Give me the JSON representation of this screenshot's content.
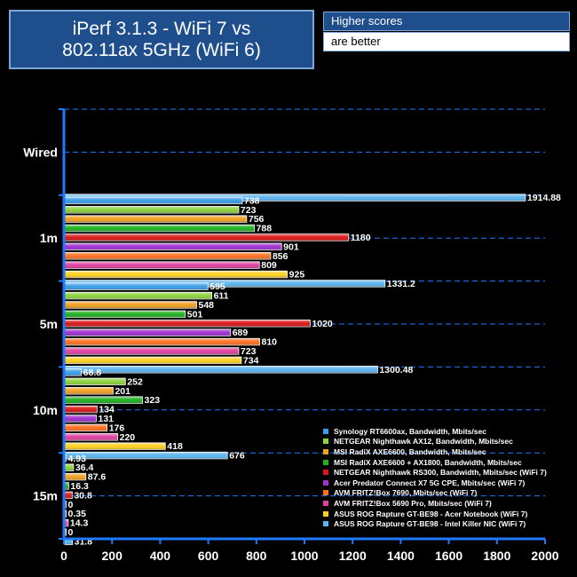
{
  "header": {
    "title_line1": "iPerf 3.1.3 - WiFi 7 vs",
    "title_line2": "802.11ax 5GHz (WiFi 6)",
    "note_line1": "Higher scores",
    "note_line2": "are better"
  },
  "colors": {
    "background": "#000000",
    "panel": "#1f4e8c",
    "axis": "#1f78ff",
    "gridline": "#1f78ff"
  },
  "chart_data": {
    "type": "bar",
    "orientation": "horizontal",
    "title": "iPerf 3.1.3 - WiFi 7 vs 802.11ax 5GHz (WiFi 6)",
    "xlabel": "",
    "ylabel": "",
    "xlim": [
      0,
      2000
    ],
    "xticks": [
      "0",
      "200",
      "400",
      "600",
      "800",
      "1000",
      "1200",
      "1400",
      "1600",
      "1800",
      "2000"
    ],
    "grid": true,
    "legend_position": "bottom-right",
    "categories": [
      "Wired",
      "1m",
      "5m",
      "10m",
      "15m"
    ],
    "series": [
      {
        "name": "Synology RT6600ax, Bandwidth, Mbits/sec",
        "color": "#3b9de6",
        "values": [
          null,
          738,
          595,
          68.8,
          4.93
        ],
        "labels": [
          "",
          "738",
          "595",
          "68.8",
          "4.93"
        ]
      },
      {
        "name": "NETGEAR Nighthawk AX12, Bandwidth, Mbits/sec",
        "color": "#8bd23c",
        "values": [
          null,
          723,
          611,
          252,
          36.4
        ],
        "labels": [
          "",
          "723",
          "611",
          "252",
          "36.4"
        ]
      },
      {
        "name": "MSI RadiX AXE6600, Bandwidth, Mbits/sec",
        "color": "#f0a020",
        "values": [
          null,
          756,
          548,
          201,
          87.6
        ],
        "labels": [
          "",
          "756",
          "548",
          "201",
          "87.6"
        ]
      },
      {
        "name": "MSI RadiX AXE6600 + AX1800, Bandwidth, Mbits/sec",
        "color": "#20b020",
        "values": [
          null,
          788,
          501,
          323,
          16.3
        ],
        "labels": [
          "",
          "788",
          "501",
          "323",
          "16.3"
        ]
      },
      {
        "name": "NETGEAR Nighthawk RS300, Bandwidth, Mbits/sec (WiFi 7)",
        "color": "#d81818",
        "values": [
          null,
          1180,
          1020,
          134,
          30.8
        ],
        "labels": [
          "",
          "1180",
          "1020",
          "134",
          "30.8"
        ]
      },
      {
        "name": "Acer Predator Connect X7 5G CPE, Mbits/sec (WiFi 7)",
        "color": "#a030d0",
        "values": [
          null,
          901,
          689,
          131,
          0
        ],
        "labels": [
          "",
          "901",
          "689",
          "131",
          "0"
        ]
      },
      {
        "name": "AVM FRITZ!Box 7690, Mbits/sec (WiFi 7)",
        "color": "#ff7020",
        "values": [
          null,
          856,
          810,
          176,
          0.35
        ],
        "labels": [
          "",
          "856",
          "810",
          "176",
          "0.35"
        ]
      },
      {
        "name": "AVM FRITZ!Box 5690 Pro, Mbits/sec (WiFi 7)",
        "color": "#e040a0",
        "values": [
          null,
          809,
          723,
          220,
          14.3
        ],
        "labels": [
          "",
          "809",
          "723",
          "220",
          "14.3"
        ]
      },
      {
        "name": "ASUS ROG Rapture GT-BE98 - Acer Notebook (WiFi 7)",
        "color": "#ffd020",
        "values": [
          null,
          925,
          734,
          418,
          0
        ],
        "labels": [
          "",
          "925",
          "734",
          "418",
          "0"
        ]
      },
      {
        "name": "ASUS ROG Rapture GT-BE98 - Intel Killer NIC (WiFi 7)",
        "color": "#5ab4f0",
        "values": [
          1914.88,
          1331.2,
          1300.48,
          676,
          31.8
        ],
        "labels": [
          "1914.88",
          "1331.2",
          "1300.48",
          "676",
          "31.8"
        ]
      }
    ]
  }
}
